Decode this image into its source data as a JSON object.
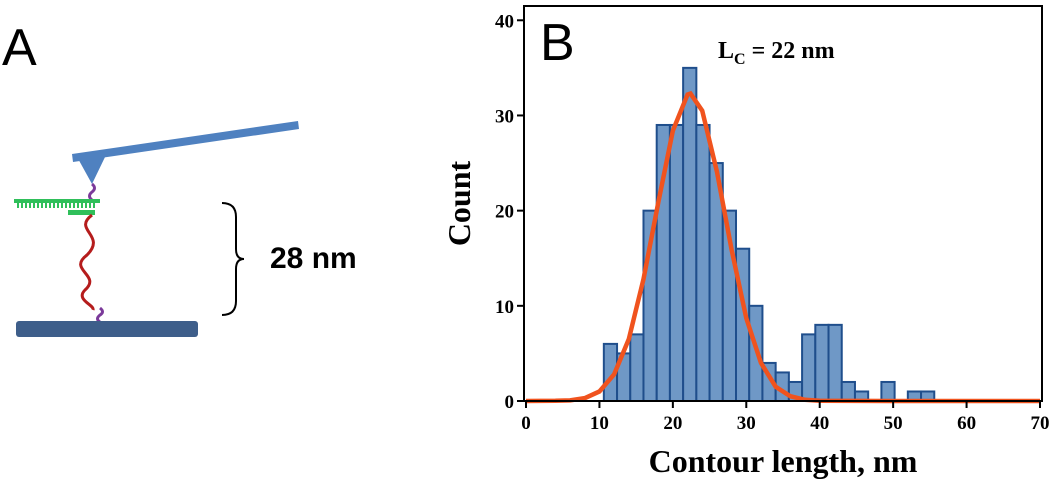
{
  "panel_labels": [
    "A",
    "B"
  ],
  "diagram": {
    "distance_label": "28 nm"
  },
  "chart_data": {
    "type": "histogram",
    "xlabel": "Contour length, nm",
    "ylabel": "Count",
    "annotation": {
      "main": "L",
      "sub": "C",
      "rest": " = 22 nm"
    },
    "bins": [
      10.6,
      12.4,
      14.2,
      16.0,
      17.8,
      19.6,
      21.4,
      23.2,
      25.0,
      26.8,
      28.6,
      30.4,
      32.2,
      34.0,
      35.8,
      37.6,
      39.4,
      41.2,
      43.0,
      44.8,
      46.6,
      48.4,
      50.2,
      52.0,
      53.8,
      55.6
    ],
    "counts": [
      6,
      5,
      7,
      20,
      29,
      29,
      35,
      29,
      25,
      20,
      16,
      10,
      4,
      3,
      2,
      7,
      8,
      8,
      2,
      1,
      0,
      2,
      0,
      1,
      1
    ],
    "color": "#6f98c6",
    "edge_color": "#1f4e8c",
    "fit": {
      "color": "#f0531e",
      "x": [
        0,
        4,
        6,
        8,
        10,
        12,
        14,
        16,
        18,
        20,
        22,
        22.4,
        24,
        26,
        28,
        30,
        32,
        34,
        36,
        38,
        40,
        50,
        70
      ],
      "y": [
        0,
        0.02,
        0.07,
        0.3,
        1.0,
        2.8,
        6.5,
        12.8,
        20.8,
        28.4,
        32.2,
        32.3,
        30.5,
        24.1,
        15.9,
        8.7,
        4.0,
        1.5,
        0.5,
        0.13,
        0.03,
        0,
        0
      ]
    },
    "xlim": [
      0,
      70
    ],
    "ylim": [
      0,
      41.5
    ],
    "xticks": [
      0,
      10,
      20,
      30,
      40,
      50,
      60,
      70
    ],
    "yticks": [
      0,
      10,
      20,
      30,
      40
    ]
  }
}
